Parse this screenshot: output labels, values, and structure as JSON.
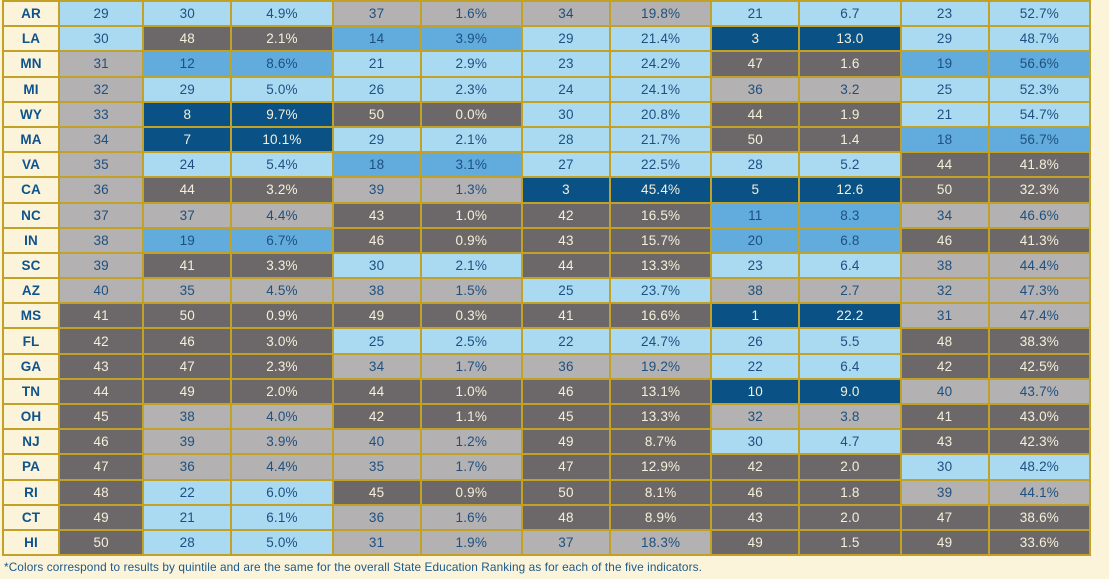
{
  "palette": {
    "quintile_1_dark_blue": "#0a5286",
    "quintile_2_medium_blue": "#61acdc",
    "quintile_3_light_blue": "#a9daf2",
    "quintile_4_light_gray": "#b4b1b2",
    "quintile_5_dark_gray": "#6c6869",
    "page_background": "#fbf4da",
    "grid_border_gold": "#c2a127",
    "text_dark_navy": "#1d5080",
    "text_light_cream": "#f5efdb",
    "state_label_blue": "#0d538e"
  },
  "footnote": "*Colors correspond to results by quintile and are the same for the overall State Education Ranking as for each of the five indicators.",
  "chart_data": {
    "type": "table",
    "legend": "Cell color = quintile of rank: 1-10 dark blue, 11-20 medium blue, 21-30 light blue, 31-40 light gray, 41-50 dark gray",
    "rows": [
      {
        "state": "AR",
        "overall_rank": 29,
        "indicators": [
          {
            "rank": 30,
            "value": "4.9%"
          },
          {
            "rank": 37,
            "value": "1.6%"
          },
          {
            "rank": 34,
            "value": "19.8%"
          },
          {
            "rank": 21,
            "value": "6.7"
          },
          {
            "rank": 23,
            "value": "52.7%"
          }
        ]
      },
      {
        "state": "LA",
        "overall_rank": 30,
        "indicators": [
          {
            "rank": 48,
            "value": "2.1%"
          },
          {
            "rank": 14,
            "value": "3.9%"
          },
          {
            "rank": 29,
            "value": "21.4%"
          },
          {
            "rank": 3,
            "value": "13.0"
          },
          {
            "rank": 29,
            "value": "48.7%"
          }
        ]
      },
      {
        "state": "MN",
        "overall_rank": 31,
        "indicators": [
          {
            "rank": 12,
            "value": "8.6%"
          },
          {
            "rank": 21,
            "value": "2.9%"
          },
          {
            "rank": 23,
            "value": "24.2%"
          },
          {
            "rank": 47,
            "value": "1.6"
          },
          {
            "rank": 19,
            "value": "56.6%"
          }
        ]
      },
      {
        "state": "MI",
        "overall_rank": 32,
        "indicators": [
          {
            "rank": 29,
            "value": "5.0%"
          },
          {
            "rank": 26,
            "value": "2.3%"
          },
          {
            "rank": 24,
            "value": "24.1%"
          },
          {
            "rank": 36,
            "value": "3.2"
          },
          {
            "rank": 25,
            "value": "52.3%"
          }
        ]
      },
      {
        "state": "WY",
        "overall_rank": 33,
        "indicators": [
          {
            "rank": 8,
            "value": "9.7%"
          },
          {
            "rank": 50,
            "value": "0.0%"
          },
          {
            "rank": 30,
            "value": "20.8%"
          },
          {
            "rank": 44,
            "value": "1.9"
          },
          {
            "rank": 21,
            "value": "54.7%"
          }
        ]
      },
      {
        "state": "MA",
        "overall_rank": 34,
        "indicators": [
          {
            "rank": 7,
            "value": "10.1%"
          },
          {
            "rank": 29,
            "value": "2.1%"
          },
          {
            "rank": 28,
            "value": "21.7%"
          },
          {
            "rank": 50,
            "value": "1.4"
          },
          {
            "rank": 18,
            "value": "56.7%"
          }
        ]
      },
      {
        "state": "VA",
        "overall_rank": 35,
        "indicators": [
          {
            "rank": 24,
            "value": "5.4%"
          },
          {
            "rank": 18,
            "value": "3.1%"
          },
          {
            "rank": 27,
            "value": "22.5%"
          },
          {
            "rank": 28,
            "value": "5.2"
          },
          {
            "rank": 44,
            "value": "41.8%"
          }
        ]
      },
      {
        "state": "CA",
        "overall_rank": 36,
        "indicators": [
          {
            "rank": 44,
            "value": "3.2%"
          },
          {
            "rank": 39,
            "value": "1.3%"
          },
          {
            "rank": 3,
            "value": "45.4%"
          },
          {
            "rank": 5,
            "value": "12.6"
          },
          {
            "rank": 50,
            "value": "32.3%"
          }
        ]
      },
      {
        "state": "NC",
        "overall_rank": 37,
        "indicators": [
          {
            "rank": 37,
            "value": "4.4%"
          },
          {
            "rank": 43,
            "value": "1.0%"
          },
          {
            "rank": 42,
            "value": "16.5%"
          },
          {
            "rank": 11,
            "value": "8.3"
          },
          {
            "rank": 34,
            "value": "46.6%"
          }
        ]
      },
      {
        "state": "IN",
        "overall_rank": 38,
        "indicators": [
          {
            "rank": 19,
            "value": "6.7%"
          },
          {
            "rank": 46,
            "value": "0.9%"
          },
          {
            "rank": 43,
            "value": "15.7%"
          },
          {
            "rank": 20,
            "value": "6.8"
          },
          {
            "rank": 46,
            "value": "41.3%"
          }
        ]
      },
      {
        "state": "SC",
        "overall_rank": 39,
        "indicators": [
          {
            "rank": 41,
            "value": "3.3%"
          },
          {
            "rank": 30,
            "value": "2.1%"
          },
          {
            "rank": 44,
            "value": "13.3%"
          },
          {
            "rank": 23,
            "value": "6.4"
          },
          {
            "rank": 38,
            "value": "44.4%"
          }
        ]
      },
      {
        "state": "AZ",
        "overall_rank": 40,
        "indicators": [
          {
            "rank": 35,
            "value": "4.5%"
          },
          {
            "rank": 38,
            "value": "1.5%"
          },
          {
            "rank": 25,
            "value": "23.7%"
          },
          {
            "rank": 38,
            "value": "2.7"
          },
          {
            "rank": 32,
            "value": "47.3%"
          }
        ]
      },
      {
        "state": "MS",
        "overall_rank": 41,
        "indicators": [
          {
            "rank": 50,
            "value": "0.9%"
          },
          {
            "rank": 49,
            "value": "0.3%"
          },
          {
            "rank": 41,
            "value": "16.6%"
          },
          {
            "rank": 1,
            "value": "22.2"
          },
          {
            "rank": 31,
            "value": "47.4%"
          }
        ]
      },
      {
        "state": "FL",
        "overall_rank": 42,
        "indicators": [
          {
            "rank": 46,
            "value": "3.0%"
          },
          {
            "rank": 25,
            "value": "2.5%"
          },
          {
            "rank": 22,
            "value": "24.7%"
          },
          {
            "rank": 26,
            "value": "5.5"
          },
          {
            "rank": 48,
            "value": "38.3%"
          }
        ]
      },
      {
        "state": "GA",
        "overall_rank": 43,
        "indicators": [
          {
            "rank": 47,
            "value": "2.3%"
          },
          {
            "rank": 34,
            "value": "1.7%"
          },
          {
            "rank": 36,
            "value": "19.2%"
          },
          {
            "rank": 22,
            "value": "6.4"
          },
          {
            "rank": 42,
            "value": "42.5%"
          }
        ]
      },
      {
        "state": "TN",
        "overall_rank": 44,
        "indicators": [
          {
            "rank": 49,
            "value": "2.0%"
          },
          {
            "rank": 44,
            "value": "1.0%"
          },
          {
            "rank": 46,
            "value": "13.1%"
          },
          {
            "rank": 10,
            "value": "9.0"
          },
          {
            "rank": 40,
            "value": "43.7%"
          }
        ]
      },
      {
        "state": "OH",
        "overall_rank": 45,
        "indicators": [
          {
            "rank": 38,
            "value": "4.0%"
          },
          {
            "rank": 42,
            "value": "1.1%"
          },
          {
            "rank": 45,
            "value": "13.3%"
          },
          {
            "rank": 32,
            "value": "3.8"
          },
          {
            "rank": 41,
            "value": "43.0%"
          }
        ]
      },
      {
        "state": "NJ",
        "overall_rank": 46,
        "indicators": [
          {
            "rank": 39,
            "value": "3.9%"
          },
          {
            "rank": 40,
            "value": "1.2%"
          },
          {
            "rank": 49,
            "value": "8.7%"
          },
          {
            "rank": 30,
            "value": "4.7"
          },
          {
            "rank": 43,
            "value": "42.3%"
          }
        ]
      },
      {
        "state": "PA",
        "overall_rank": 47,
        "indicators": [
          {
            "rank": 36,
            "value": "4.4%"
          },
          {
            "rank": 35,
            "value": "1.7%"
          },
          {
            "rank": 47,
            "value": "12.9%"
          },
          {
            "rank": 42,
            "value": "2.0"
          },
          {
            "rank": 30,
            "value": "48.2%"
          }
        ]
      },
      {
        "state": "RI",
        "overall_rank": 48,
        "indicators": [
          {
            "rank": 22,
            "value": "6.0%"
          },
          {
            "rank": 45,
            "value": "0.9%"
          },
          {
            "rank": 50,
            "value": "8.1%"
          },
          {
            "rank": 46,
            "value": "1.8"
          },
          {
            "rank": 39,
            "value": "44.1%"
          }
        ]
      },
      {
        "state": "CT",
        "overall_rank": 49,
        "indicators": [
          {
            "rank": 21,
            "value": "6.1%"
          },
          {
            "rank": 36,
            "value": "1.6%"
          },
          {
            "rank": 48,
            "value": "8.9%"
          },
          {
            "rank": 43,
            "value": "2.0"
          },
          {
            "rank": 47,
            "value": "38.6%"
          }
        ]
      },
      {
        "state": "HI",
        "overall_rank": 50,
        "indicators": [
          {
            "rank": 28,
            "value": "5.0%"
          },
          {
            "rank": 31,
            "value": "1.9%"
          },
          {
            "rank": 37,
            "value": "18.3%"
          },
          {
            "rank": 49,
            "value": "1.5"
          },
          {
            "rank": 49,
            "value": "33.6%"
          }
        ]
      }
    ]
  }
}
